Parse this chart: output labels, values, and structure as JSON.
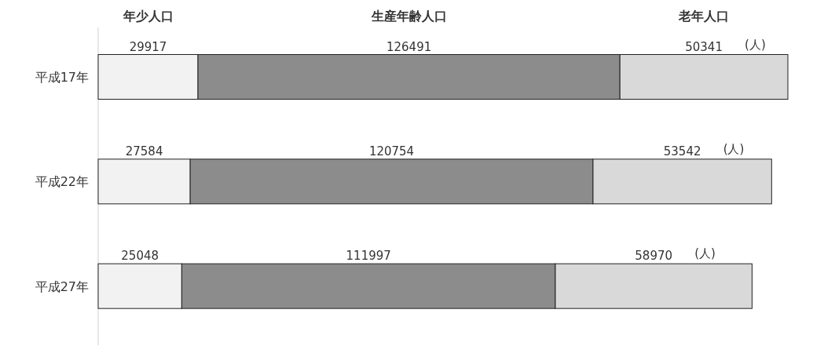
{
  "chart_data": {
    "type": "bar",
    "orientation": "horizontal",
    "stacked": true,
    "data_labels": true,
    "legend": "top",
    "categories": [
      "平成17年",
      "平成22年",
      "平成27年"
    ],
    "series": [
      {
        "name": "年少人口",
        "color": "#f2f2f2",
        "values": [
          29917,
          27584,
          25048
        ]
      },
      {
        "name": "生産年齢人口",
        "color": "#8c8c8c",
        "values": [
          126491,
          120754,
          111997
        ]
      },
      {
        "name": "老年人口",
        "color": "#d9d9d9",
        "values": [
          50341,
          53542,
          58970
        ]
      }
    ],
    "annotations": [
      "(人)",
      "(人)",
      "(人)"
    ]
  }
}
